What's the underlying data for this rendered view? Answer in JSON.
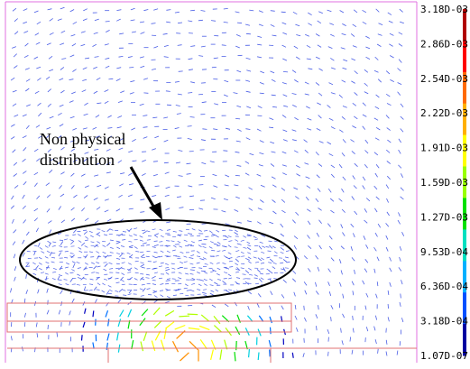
{
  "annotation": {
    "line1": "Non physical",
    "line2": "distribution"
  },
  "colorbar": {
    "labels": [
      "3.18D-03",
      "2.86D-03",
      "2.54D-03",
      "2.22D-03",
      "1.91D-03",
      "1.59D-03",
      "1.27D-03",
      "9.53D-04",
      "6.36D-04",
      "3.18D-04",
      "1.07D-07"
    ],
    "colors": [
      "#b00000",
      "#ff0000",
      "#ff6a00",
      "#ffb000",
      "#ffff00",
      "#99ff00",
      "#00e000",
      "#00e0c0",
      "#00b0ff",
      "#0050ff",
      "#0000a0"
    ]
  },
  "colors": {
    "frame": "#e070e0",
    "vector": "#4a5ee6",
    "region": "#e07070",
    "ellipse": "#000000"
  }
}
